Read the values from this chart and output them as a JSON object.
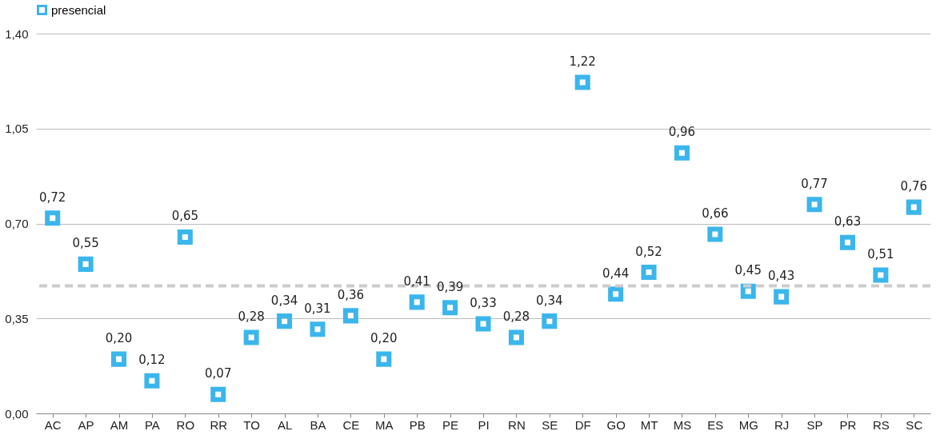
{
  "chart_data": {
    "type": "scatter",
    "categories": [
      "AC",
      "AP",
      "AM",
      "PA",
      "RO",
      "RR",
      "TO",
      "AL",
      "BA",
      "CE",
      "MA",
      "PB",
      "PE",
      "PI",
      "RN",
      "SE",
      "DF",
      "GO",
      "MT",
      "MS",
      "ES",
      "MG",
      "RJ",
      "SP",
      "PR",
      "RS",
      "SC"
    ],
    "series": [
      {
        "name": "presencial",
        "color": "#3bb6ec",
        "values": [
          0.72,
          0.55,
          0.2,
          0.12,
          0.65,
          0.07,
          0.28,
          0.34,
          0.31,
          0.36,
          0.2,
          0.41,
          0.39,
          0.33,
          0.28,
          0.34,
          1.22,
          0.44,
          0.52,
          0.96,
          0.66,
          0.45,
          0.43,
          0.77,
          0.63,
          0.51,
          0.76
        ],
        "value_labels": [
          "0,72",
          "0,55",
          "0,20",
          "0,12",
          "0,65",
          "0,07",
          "0,28",
          "0,34",
          "0,31",
          "0,36",
          "0,20",
          "0,41",
          "0,39",
          "0,33",
          "0,28",
          "0,34",
          "1,22",
          "0,44",
          "0,52",
          "0,96",
          "0,66",
          "0,45",
          "0,43",
          "0,77",
          "0,63",
          "0,51",
          "0,76"
        ]
      }
    ],
    "ylim": [
      0,
      1.4
    ],
    "yticks": [
      {
        "value": 0,
        "label": "0,00"
      },
      {
        "value": 0.35,
        "label": "0,35"
      },
      {
        "value": 0.7,
        "label": "0,70"
      },
      {
        "value": 1.05,
        "label": "1,05"
      },
      {
        "value": 1.4,
        "label": "1,40"
      }
    ],
    "ref_lines": [
      {
        "axis": "y",
        "value": 0.47,
        "color": "#cccccc",
        "line_style": "dashed"
      }
    ],
    "grid": "y",
    "legend": "top",
    "marker": "square"
  }
}
